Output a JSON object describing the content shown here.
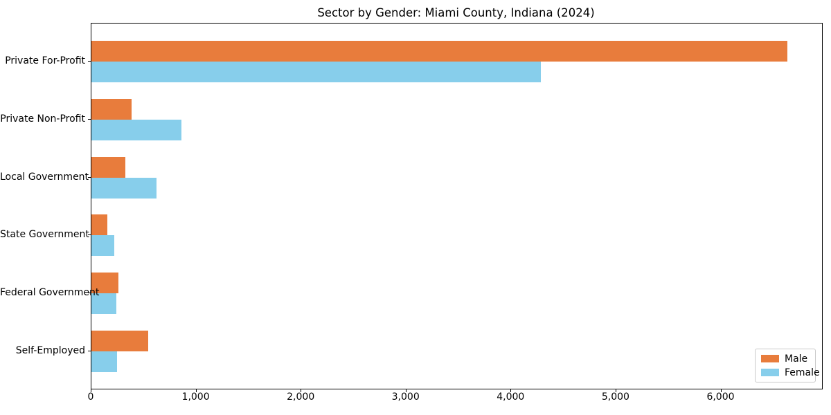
{
  "chart_data": {
    "type": "bar",
    "orientation": "horizontal",
    "title": "Sector by Gender: Miami County, Indiana (2024)",
    "categories": [
      "Private For-Profit",
      "Private Non-Profit",
      "Local Government",
      "State Government",
      "Federal Government",
      "Self-Employed"
    ],
    "series": [
      {
        "name": "Male",
        "color": "#E87C3C",
        "values": [
          6630,
          380,
          320,
          150,
          260,
          540
        ]
      },
      {
        "name": "Female",
        "color": "#87CEEB",
        "values": [
          4280,
          860,
          620,
          220,
          240,
          245
        ]
      }
    ],
    "xlabel": "",
    "ylabel": "",
    "xlim": [
      0,
      6960
    ],
    "xticks": [
      0,
      1000,
      2000,
      3000,
      4000,
      5000,
      6000
    ],
    "xtick_labels": [
      "0",
      "1,000",
      "2,000",
      "3,000",
      "4,000",
      "5,000",
      "6,000"
    ],
    "grid": false,
    "legend": {
      "position": "lower right",
      "entries": [
        "Male",
        "Female"
      ]
    },
    "colors": {
      "male": "#E87C3C",
      "female": "#87CEEB",
      "spine": "#000000",
      "text": "#000000"
    }
  }
}
